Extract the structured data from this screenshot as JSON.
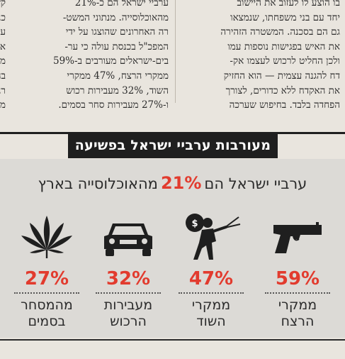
{
  "article": {
    "right_column": [
      "בו הוצע לו לעזוב את היישוב",
      "יחד עם בני משפחתו, שנמצאו",
      "גם הם בסכנה. המשטרה הזהירה",
      "את האיש בפגישות נוספות עמו",
      "ולכן החליט לרכוש לעצמו אק-",
      "דח להגנה עצמית — הוא החזיק",
      "את האקדח ללא כדורים, לצורך",
      "הפחדה בלבד. בחיפוש שערכה"
    ],
    "middle_column": [
      "ערביי ישראל הם כ-21%",
      "מהאוכלוסייה. מנתוני המשט-",
      "רה האחרונים שהוצגו על ידי",
      "המפכ\"ל בכנסת עולה כי ער-",
      "בים-ישראלים מעורבים ב-59%",
      "ממקרי הרצח, 47% ממקרי",
      "השוד, 32% מעבירות רכוש",
      "ו-27% מעבירות סחר בסמים."
    ],
    "edge_column": [
      "קש",
      "כנ",
      "עד",
      "אי",
      "מנ",
      "בה",
      "רנ",
      "מנ"
    ]
  },
  "banner": {
    "title": "מעורבות ערביי ישראל בפשיעה"
  },
  "headline": {
    "before": "ערביי ישראל הם",
    "percent": "21%",
    "after": "מהאוכלוסייה בארץ"
  },
  "stats": [
    {
      "icon": "gun-icon",
      "value": "59%",
      "label_line1": "ממקרי",
      "label_line2": "הרצח"
    },
    {
      "icon": "robber-icon",
      "value": "47%",
      "label_line1": "ממקרי",
      "label_line2": "השוד"
    },
    {
      "icon": "car-icon",
      "value": "32%",
      "label_line1": "מעבירות",
      "label_line2": "הרכוש"
    },
    {
      "icon": "cannabis-leaf-icon",
      "value": "27%",
      "label_line1": "מהמסחר",
      "label_line2": "בסמים"
    }
  ],
  "colors": {
    "accent": "#e23b2e",
    "banner": "#1f1f1f",
    "panel": "#dcdad6",
    "paper": "#e9e5de"
  }
}
